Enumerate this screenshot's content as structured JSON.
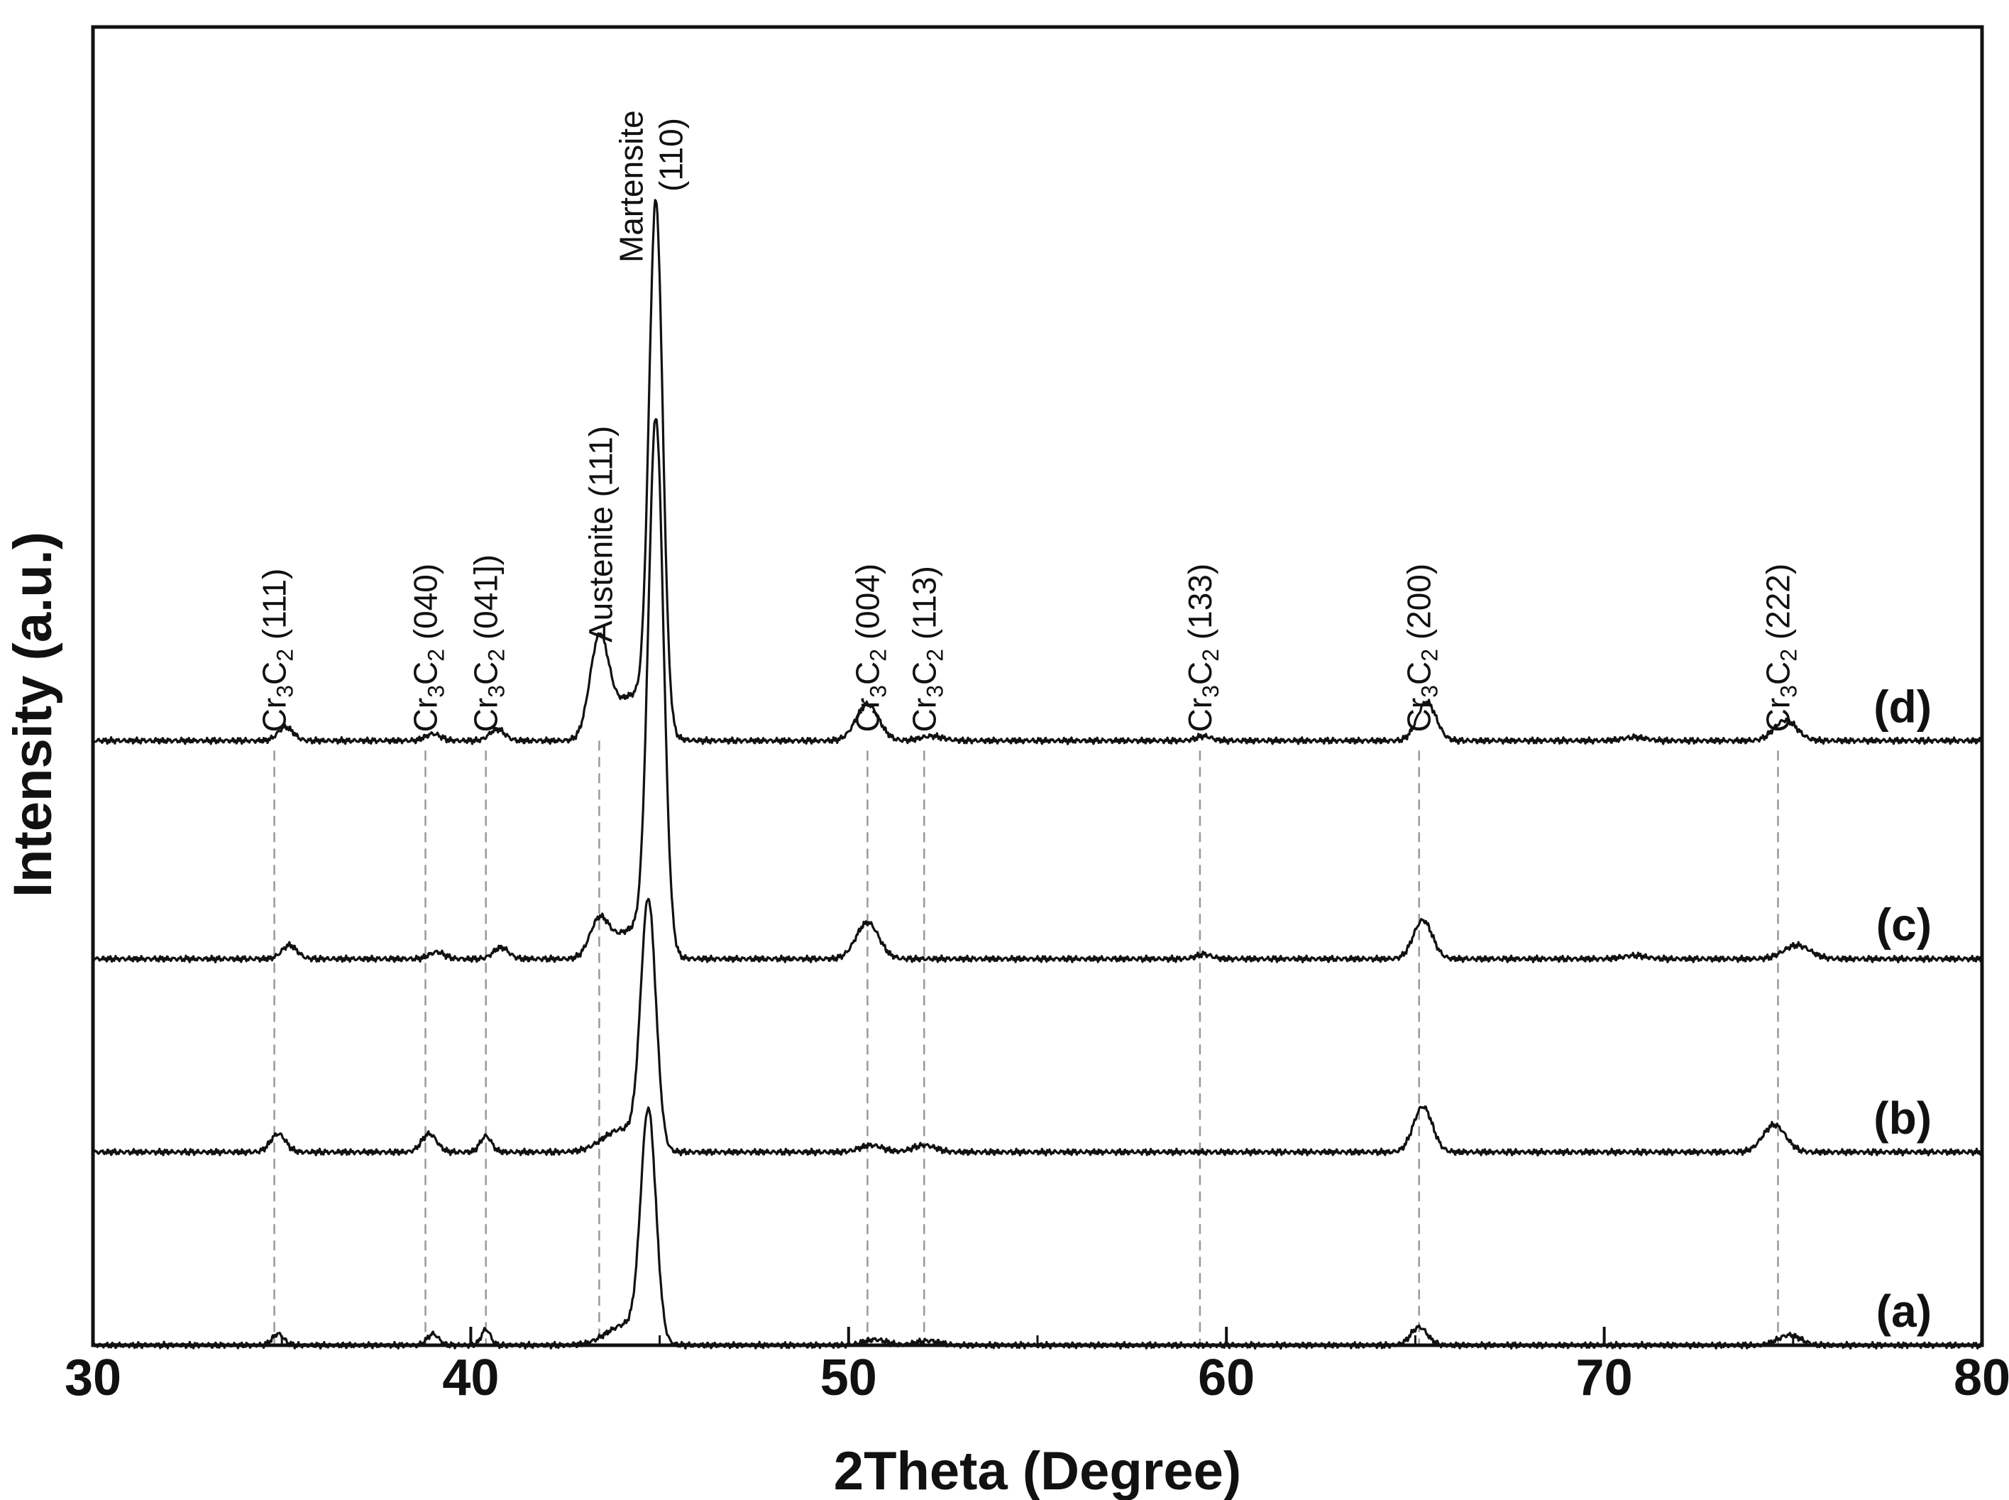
{
  "chart_data": {
    "type": "line",
    "title": "",
    "xlabel": "2Theta (Degree)",
    "ylabel": "Intensity (a.u.)",
    "xlim": [
      30,
      80
    ],
    "xticks": [
      30,
      40,
      50,
      60,
      70,
      80
    ],
    "yticks": [],
    "grid": false,
    "legend": "right, labels beside each pattern",
    "colors": {
      "line": "#111111",
      "guide": "#999999"
    },
    "series": [
      {
        "name": "(a)",
        "baseline": 0.0,
        "peaks": [
          [
            34.9,
            0.5,
            0.15
          ],
          [
            39.0,
            0.5,
            0.15
          ],
          [
            40.4,
            0.7,
            0.12
          ],
          [
            44.1,
            0.9,
            0.5
          ],
          [
            44.7,
            10.0,
            0.2
          ],
          [
            50.7,
            0.25,
            0.3
          ],
          [
            52.1,
            0.2,
            0.3
          ],
          [
            65.1,
            0.8,
            0.22
          ],
          [
            74.9,
            0.45,
            0.3
          ]
        ]
      },
      {
        "name": "(b)",
        "baseline": 8.5,
        "peaks": [
          [
            34.9,
            0.8,
            0.2
          ],
          [
            38.9,
            0.8,
            0.2
          ],
          [
            40.4,
            0.7,
            0.15
          ],
          [
            44.0,
            1.0,
            0.5
          ],
          [
            44.7,
            10.8,
            0.2
          ],
          [
            50.6,
            0.3,
            0.3
          ],
          [
            52.0,
            0.3,
            0.3
          ],
          [
            65.2,
            2.0,
            0.25
          ],
          [
            74.5,
            1.2,
            0.3
          ]
        ]
      },
      {
        "name": "(c)",
        "baseline": 17.0,
        "peaks": [
          [
            35.2,
            0.6,
            0.2
          ],
          [
            39.1,
            0.3,
            0.2
          ],
          [
            40.8,
            0.5,
            0.2
          ],
          [
            43.4,
            1.6,
            0.25
          ],
          [
            44.3,
            1.3,
            0.5
          ],
          [
            44.9,
            23.2,
            0.2
          ],
          [
            50.5,
            1.6,
            0.3
          ],
          [
            59.4,
            0.2,
            0.2
          ],
          [
            65.2,
            1.7,
            0.25
          ],
          [
            70.8,
            0.15,
            0.3
          ],
          [
            75.1,
            0.6,
            0.35
          ]
        ]
      },
      {
        "name": "(d)",
        "baseline": 26.6,
        "peaks": [
          [
            35.1,
            0.6,
            0.2
          ],
          [
            39.0,
            0.3,
            0.2
          ],
          [
            40.7,
            0.5,
            0.2
          ],
          [
            43.4,
            4.3,
            0.25
          ],
          [
            44.3,
            2.0,
            0.5
          ],
          [
            44.9,
            22.8,
            0.18
          ],
          [
            50.5,
            1.6,
            0.3
          ],
          [
            52.2,
            0.2,
            0.3
          ],
          [
            59.4,
            0.2,
            0.2
          ],
          [
            65.3,
            1.7,
            0.25
          ],
          [
            70.8,
            0.15,
            0.3
          ],
          [
            74.8,
            0.9,
            0.3
          ]
        ]
      }
    ],
    "ymax": 58,
    "reference_lines": [
      {
        "x": 34.8,
        "label_main": "Cr",
        "sub1": "3",
        "mid": "C",
        "sub2": "2",
        "hkl": "(111)"
      },
      {
        "x": 38.8,
        "label_main": "Cr",
        "sub1": "3",
        "mid": "C",
        "sub2": "2",
        "hkl": "(040)"
      },
      {
        "x": 40.4,
        "label_main": "Cr",
        "sub1": "3",
        "mid": "C",
        "sub2": "2",
        "hkl": "(041])"
      },
      {
        "x": 43.4,
        "label_main": "Austenite",
        "hkl": "(111)"
      },
      {
        "x": 44.7,
        "label_main": "Martensite",
        "hkl": "(110)"
      },
      {
        "x": 50.5,
        "label_main": "Cr",
        "sub1": "3",
        "mid": "C",
        "sub2": "2",
        "hkl": "(004)"
      },
      {
        "x": 52.0,
        "label_main": "Cr",
        "sub1": "3",
        "mid": "C",
        "sub2": "2",
        "hkl": "(113)"
      },
      {
        "x": 59.3,
        "label_main": "Cr",
        "sub1": "3",
        "mid": "C",
        "sub2": "2",
        "hkl": "(133)"
      },
      {
        "x": 65.1,
        "label_main": "Cr",
        "sub1": "3",
        "mid": "C",
        "sub2": "2",
        "hkl": "(200)"
      },
      {
        "x": 74.6,
        "label_main": "Cr",
        "sub1": "3",
        "mid": "C",
        "sub2": "2",
        "hkl": "(222)"
      }
    ]
  }
}
